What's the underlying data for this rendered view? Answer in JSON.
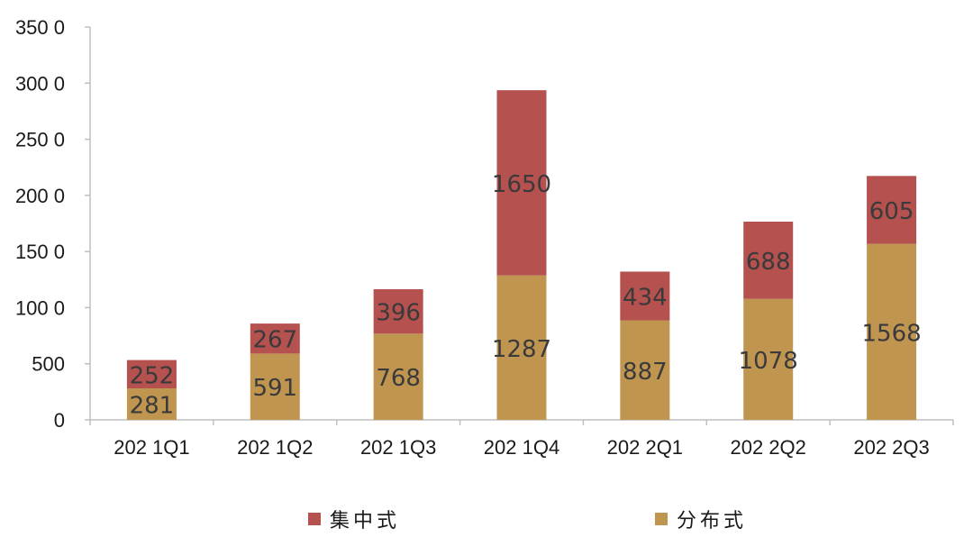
{
  "chart_data": {
    "type": "bar",
    "stacked": true,
    "categories": [
      "2021Q1",
      "2021Q2",
      "2021Q3",
      "2021Q4",
      "2022Q1",
      "2022Q2",
      "2022Q3"
    ],
    "series": [
      {
        "name": "分布式",
        "color": "#C09550",
        "values": [
          281,
          591,
          768,
          1287,
          887,
          1078,
          1568
        ]
      },
      {
        "name": "集中式",
        "color": "#B5514F",
        "values": [
          252,
          267,
          396,
          1650,
          434,
          688,
          605
        ]
      }
    ],
    "y_ticks": [
      "0",
      "500",
      "100 0",
      "150 0",
      "200 0",
      "250 0",
      "300 0",
      "350 0"
    ],
    "x_ticks": [
      "202 1Q1",
      "202 1Q2",
      "202 1Q3",
      "202 1Q4",
      "202 2Q1",
      "202 2Q2",
      "202 2Q3"
    ],
    "ylim": [
      0,
      3500
    ],
    "grid": false,
    "legend_position": "bottom"
  }
}
